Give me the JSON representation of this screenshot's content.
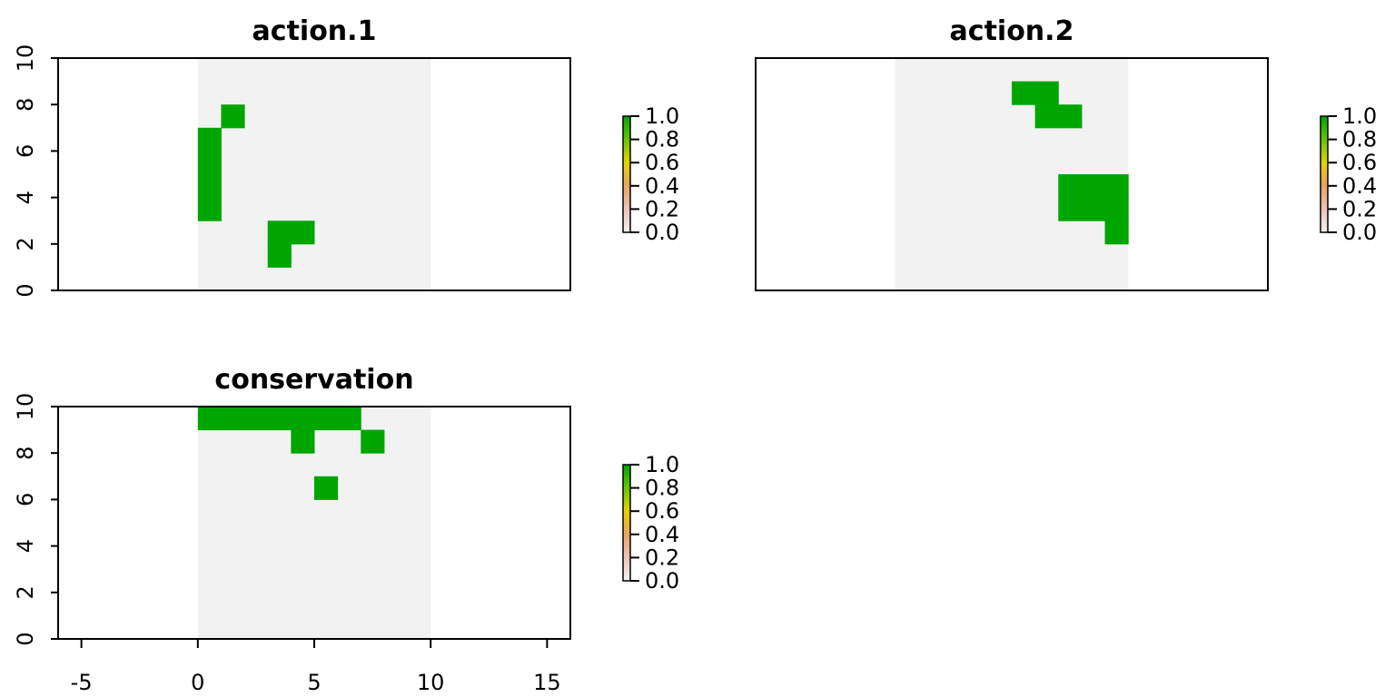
{
  "chart_data": [
    {
      "type": "heatmap",
      "title": "action.1",
      "xlim": [
        -6,
        16
      ],
      "ylim": [
        0,
        10
      ],
      "extent": {
        "x": [
          0,
          10
        ],
        "y": [
          0,
          10
        ]
      },
      "x_ticks": [],
      "x_tick_labels": [],
      "y_ticks": [
        0,
        2,
        4,
        6,
        8,
        10
      ],
      "y_tick_labels": [
        "0",
        "2",
        "4",
        "6",
        "8",
        "10"
      ],
      "legend_ticks": [
        "0.0",
        "0.2",
        "0.4",
        "0.6",
        "0.8",
        "1.0"
      ],
      "cells_value_1": [
        [
          1,
          7
        ],
        [
          0,
          6
        ],
        [
          0,
          5
        ],
        [
          0,
          4
        ],
        [
          0,
          3
        ],
        [
          3,
          2
        ],
        [
          4,
          2
        ],
        [
          3,
          1
        ]
      ]
    },
    {
      "type": "heatmap",
      "title": "action.2",
      "xlim": [
        -6,
        16
      ],
      "ylim": [
        0,
        10
      ],
      "extent": {
        "x": [
          0,
          10
        ],
        "y": [
          0,
          10
        ]
      },
      "x_ticks": [],
      "x_tick_labels": [],
      "y_ticks": [],
      "y_tick_labels": [],
      "legend_ticks": [
        "0.0",
        "0.2",
        "0.4",
        "0.6",
        "0.8",
        "1.0"
      ],
      "cells_value_1": [
        [
          5,
          8
        ],
        [
          6,
          8
        ],
        [
          6,
          7
        ],
        [
          7,
          7
        ],
        [
          7,
          4
        ],
        [
          8,
          4
        ],
        [
          9,
          4
        ],
        [
          7,
          3
        ],
        [
          8,
          3
        ],
        [
          9,
          3
        ],
        [
          9,
          2
        ]
      ]
    },
    {
      "type": "heatmap",
      "title": "conservation",
      "xlim": [
        -6,
        16
      ],
      "ylim": [
        0,
        10
      ],
      "extent": {
        "x": [
          0,
          10
        ],
        "y": [
          0,
          10
        ]
      },
      "x_ticks": [
        -5,
        0,
        5,
        10,
        15
      ],
      "x_tick_labels": [
        "-5",
        "0",
        "5",
        "10",
        "15"
      ],
      "y_ticks": [
        0,
        2,
        4,
        6,
        8,
        10
      ],
      "y_tick_labels": [
        "0",
        "2",
        "4",
        "6",
        "8",
        "10"
      ],
      "legend_ticks": [
        "0.0",
        "0.2",
        "0.4",
        "0.6",
        "0.8",
        "1.0"
      ],
      "cells_value_1": [
        [
          0,
          9
        ],
        [
          1,
          9
        ],
        [
          2,
          9
        ],
        [
          3,
          9
        ],
        [
          4,
          9
        ],
        [
          5,
          9
        ],
        [
          6,
          9
        ],
        [
          4,
          8
        ],
        [
          7,
          8
        ],
        [
          5,
          6
        ]
      ]
    }
  ],
  "colors": {
    "cell_value_1": "#00a600",
    "extent_fill": "#f2f2f2",
    "legend_gradient": [
      "#f2f2f2",
      "#eec2b6",
      "#e9a464",
      "#e6d200",
      "#63c600",
      "#00a600"
    ]
  }
}
